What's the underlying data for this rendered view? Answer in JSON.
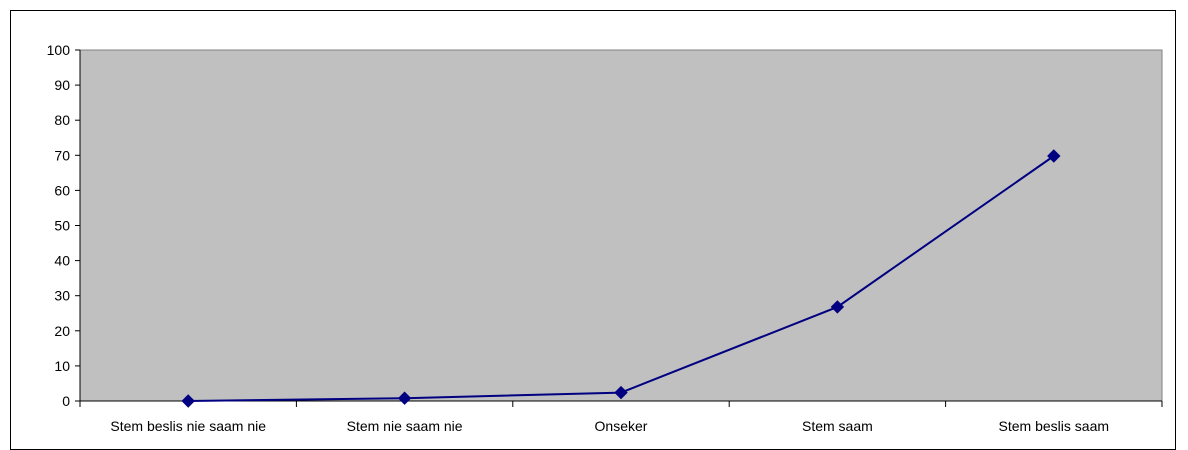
{
  "chart_data": {
    "type": "line",
    "categories": [
      "Stem beslis nie saam nie",
      "Stem nie saam nie",
      "Onseker",
      "Stem saam",
      "Stem beslis saam"
    ],
    "series": [
      {
        "values": [
          0,
          0.8,
          2.4,
          26.8,
          69.8
        ]
      }
    ],
    "ylim": [
      0,
      100
    ],
    "yticks": [
      0,
      10,
      20,
      30,
      40,
      50,
      60,
      70,
      80,
      90,
      100
    ],
    "grid": false,
    "legend": "none",
    "colors": {
      "plot_background": "#c0c0c0",
      "line": "#000080",
      "marker": "#000080",
      "axis": "#808080"
    }
  }
}
